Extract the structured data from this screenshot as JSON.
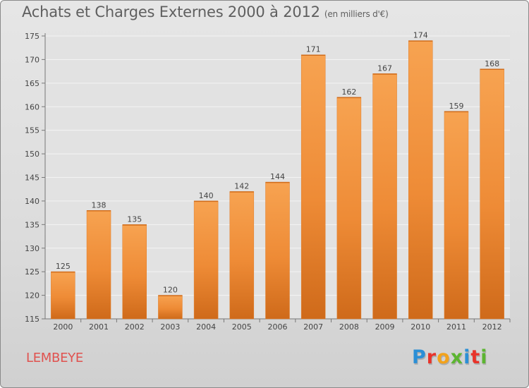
{
  "chart_data": {
    "type": "bar",
    "title": "Achats et Charges Externes 2000 à 2012",
    "subtitle": "(en milliers d'€)",
    "xlabel": "",
    "ylabel": "",
    "categories": [
      "2000",
      "2001",
      "2002",
      "2003",
      "2004",
      "2005",
      "2006",
      "2007",
      "2008",
      "2009",
      "2010",
      "2011",
      "2012"
    ],
    "values": [
      125,
      138,
      135,
      120,
      140,
      142,
      144,
      171,
      162,
      167,
      174,
      159,
      168
    ],
    "ylim": [
      115,
      175
    ],
    "yticks": [
      115,
      120,
      125,
      130,
      135,
      140,
      145,
      150,
      155,
      160,
      165,
      170,
      175
    ],
    "grid": true,
    "bar_color": "#f0913b"
  },
  "commune": "LEMBEYE",
  "logo": {
    "text": "Proxiti",
    "colors": [
      "#2b8fd6",
      "#e8332a",
      "#f2a21c",
      "#5cb531",
      "#2b8fd6",
      "#e8332a",
      "#5cb531"
    ]
  }
}
